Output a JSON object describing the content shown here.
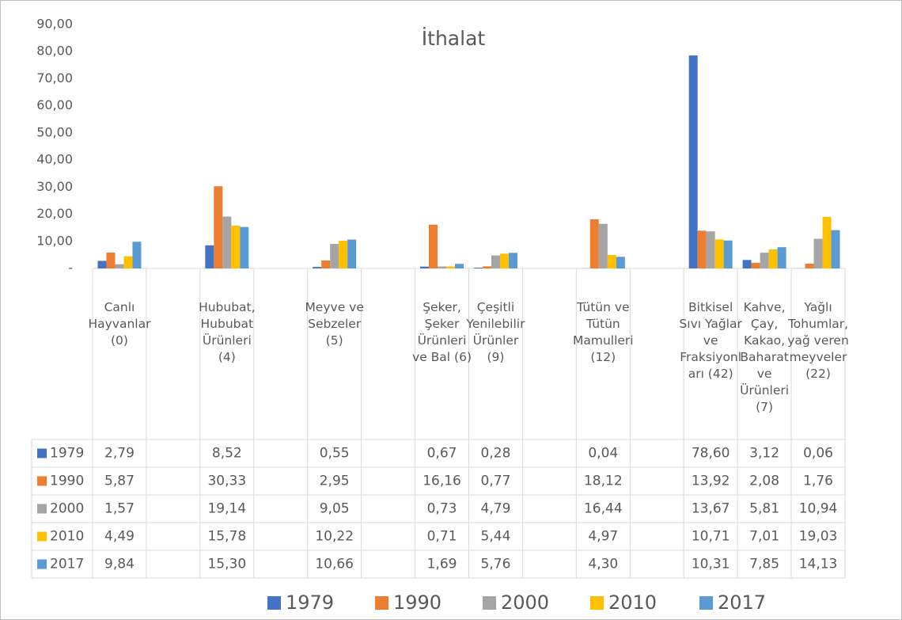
{
  "chart_data": {
    "type": "bar",
    "title": "İthalat",
    "categories": [
      "Canlı Hayvanlar (0)",
      null,
      "Hububat, Hububat Ürünleri (4)",
      null,
      "Meyve ve Sebzeler (5)",
      null,
      "Şeker, Şeker Ürünleri ve Bal (6)",
      "Çeşitli Yenilebilir Ürünler (9)",
      null,
      "Tütün ve Tütün Mamulleri (12)",
      null,
      "Bitkisel Sıvı Yağlar ve Fraksiyonları (42)",
      "Kahve, Çay, Kakao, Baharat ve Ürünleri (7)",
      "Yağlı Tohumlar, yağ veren meyveler (22)"
    ],
    "series": [
      {
        "name": "1979",
        "color": "#4472c4",
        "values": [
          2.79,
          null,
          8.52,
          null,
          0.55,
          null,
          0.67,
          0.28,
          null,
          0.04,
          null,
          78.6,
          3.12,
          0.06
        ],
        "value_labels": [
          "2,79",
          null,
          "8,52",
          null,
          "0,55",
          null,
          "0,67",
          "0,28",
          null,
          "0,04",
          null,
          "78,60",
          "3,12",
          "0,06"
        ]
      },
      {
        "name": "1990",
        "color": "#ed7d31",
        "values": [
          5.87,
          null,
          30.33,
          null,
          2.95,
          null,
          16.16,
          0.77,
          null,
          18.12,
          null,
          13.92,
          2.08,
          1.76
        ],
        "value_labels": [
          "5,87",
          null,
          "30,33",
          null,
          "2,95",
          null,
          "16,16",
          "0,77",
          null,
          "18,12",
          null,
          "13,92",
          "2,08",
          "1,76"
        ]
      },
      {
        "name": "2000",
        "color": "#a5a5a5",
        "values": [
          1.57,
          null,
          19.14,
          null,
          9.05,
          null,
          0.73,
          4.79,
          null,
          16.44,
          null,
          13.67,
          5.81,
          10.94
        ],
        "value_labels": [
          "1,57",
          null,
          "19,14",
          null,
          "9,05",
          null,
          "0,73",
          "4,79",
          null,
          "16,44",
          null,
          "13,67",
          "5,81",
          "10,94"
        ]
      },
      {
        "name": "2010",
        "color": "#ffc000",
        "values": [
          4.49,
          null,
          15.78,
          null,
          10.22,
          null,
          0.71,
          5.44,
          null,
          4.97,
          null,
          10.71,
          7.01,
          19.03
        ],
        "value_labels": [
          "4,49",
          null,
          "15,78",
          null,
          "10,22",
          null,
          "0,71",
          "5,44",
          null,
          "4,97",
          null,
          "10,71",
          "7,01",
          "19,03"
        ]
      },
      {
        "name": "2017",
        "color": "#5b9bd5",
        "values": [
          9.84,
          null,
          15.3,
          null,
          10.66,
          null,
          1.69,
          5.76,
          null,
          4.3,
          null,
          10.31,
          7.85,
          14.13
        ],
        "value_labels": [
          "9,84",
          null,
          "15,30",
          null,
          "10,66",
          null,
          "1,69",
          "5,76",
          null,
          "4,30",
          null,
          "10,31",
          "7,85",
          "14,13"
        ]
      }
    ],
    "ylim": [
      0,
      90
    ],
    "yticks": [
      {
        "value": 0,
        "label": "-"
      },
      {
        "value": 10,
        "label": "10,00"
      },
      {
        "value": 20,
        "label": "20,00"
      },
      {
        "value": 30,
        "label": "30,00"
      },
      {
        "value": 40,
        "label": "40,00"
      },
      {
        "value": 50,
        "label": "50,00"
      },
      {
        "value": 60,
        "label": "60,00"
      },
      {
        "value": 70,
        "label": "70,00"
      },
      {
        "value": 80,
        "label": "80,00"
      },
      {
        "value": 90,
        "label": "90,00"
      }
    ],
    "grid": false
  }
}
